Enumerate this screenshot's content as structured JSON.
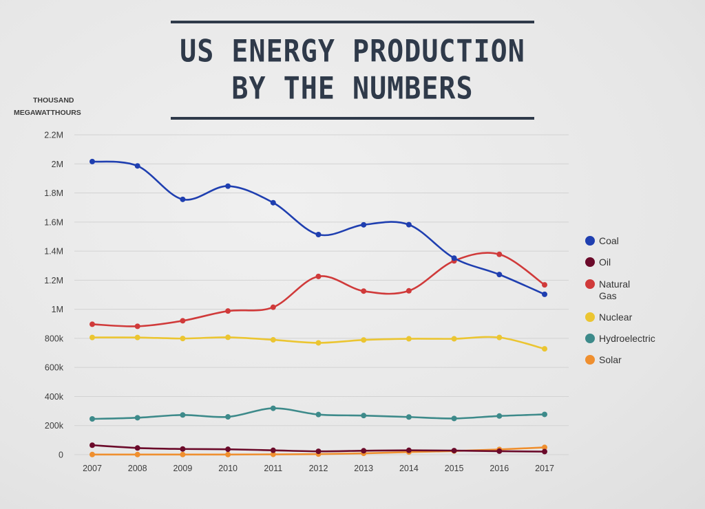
{
  "header": {
    "title_line1": "US ENERGY PRODUCTION",
    "title_line2": "BY THE NUMBERS",
    "yunit_line1": "THOUSAND",
    "yunit_line2": "MEGAWATTHOURS"
  },
  "chart_data": {
    "type": "line",
    "title": "US ENERGY PRODUCTION BY THE NUMBERS",
    "ylabel": "THOUSAND MEGAWATTHOURS",
    "xlabel": "",
    "x": [
      2007,
      2008,
      2009,
      2010,
      2011,
      2012,
      2013,
      2014,
      2015,
      2016,
      2017
    ],
    "ylim": [
      0,
      2200000
    ],
    "yticks": [
      0,
      200000,
      400000,
      600000,
      800000,
      1000000,
      1200000,
      1400000,
      1600000,
      1800000,
      2000000,
      2200000
    ],
    "ytick_labels": [
      "0",
      "200k",
      "400k",
      "600k",
      "800k",
      "1M",
      "1.2M",
      "1.4M",
      "1.6M",
      "1.8M",
      "2M",
      "2.2M"
    ],
    "grid": true,
    "legend_position": "right",
    "series": [
      {
        "name": "Coal",
        "color": "#1f3fb0",
        "values": [
          2016000,
          1986000,
          1756000,
          1847000,
          1733000,
          1514000,
          1581000,
          1582000,
          1352000,
          1239000,
          1103000
        ]
      },
      {
        "name": "Oil",
        "color": "#6b0a2a",
        "values": [
          65000,
          46000,
          39000,
          37000,
          30000,
          23000,
          27000,
          30000,
          28000,
          24000,
          21000
        ]
      },
      {
        "name": "Natural Gas",
        "color": "#d03a3a",
        "values": [
          897000,
          883000,
          921000,
          988000,
          1014000,
          1226000,
          1125000,
          1127000,
          1333000,
          1378000,
          1168000
        ]
      },
      {
        "name": "Nuclear",
        "color": "#ebc531",
        "values": [
          806000,
          806000,
          799000,
          807000,
          790000,
          769000,
          789000,
          797000,
          797000,
          806000,
          728000
        ]
      },
      {
        "name": "Hydroelectric",
        "color": "#3d8a8a",
        "values": [
          246000,
          254000,
          273000,
          260000,
          319000,
          276000,
          269000,
          259000,
          249000,
          266000,
          277000
        ]
      },
      {
        "name": "Solar",
        "color": "#ef8f2f",
        "values": [
          1000,
          1000,
          1000,
          1000,
          2000,
          4000,
          9000,
          18000,
          25000,
          36000,
          50000
        ]
      }
    ]
  }
}
